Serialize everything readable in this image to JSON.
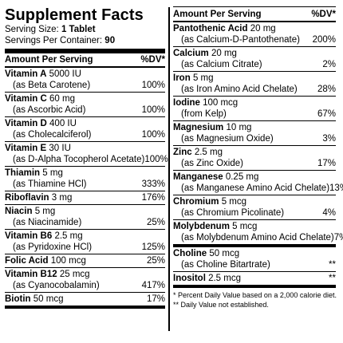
{
  "panel": {
    "title": "Supplement Facts",
    "serving_size_label": "Serving Size:",
    "serving_size_value": "1 Tablet",
    "servings_label": "Servings Per Container:",
    "servings_value": "90",
    "header_amount": "Amount Per Serving",
    "header_dv": "%DV*"
  },
  "left_items": [
    {
      "name": "Vitamin A",
      "amount": "5000 IU",
      "source": "(as Beta Carotene)",
      "dv": "100%"
    },
    {
      "name": "Vitamin C",
      "amount": "60 mg",
      "source": "(as Ascorbic Acid)",
      "dv": "100%"
    },
    {
      "name": "Vitamin D",
      "amount": "400 IU",
      "source": "(as Cholecalciferol)",
      "dv": "100%"
    },
    {
      "name": "Vitamin E",
      "amount": "30 IU",
      "source": "(as D-Alpha Tocopherol Acetate)",
      "dv": "100%"
    },
    {
      "name": "Thiamin",
      "amount": "5 mg",
      "source": "(as Thiamine HCl)",
      "dv": "333%"
    },
    {
      "name": "Riboflavin",
      "amount": "3 mg",
      "source": "",
      "dv": "176%"
    },
    {
      "name": "Niacin",
      "amount": "5 mg",
      "source": "(as Niacinamide)",
      "dv": "25%"
    },
    {
      "name": "Vitamin B6",
      "amount": "2.5 mg",
      "source": "(as Pyridoxine HCl)",
      "dv": "125%"
    },
    {
      "name": "Folic Acid",
      "amount": "100 mcg",
      "source": "",
      "dv": "25%"
    },
    {
      "name": "Vitamin B12",
      "amount": "25 mcg",
      "source": "(as Cyanocobalamin)",
      "dv": "417%"
    },
    {
      "name": "Biotin",
      "amount": "50 mcg",
      "source": "",
      "dv": "17%"
    }
  ],
  "right_items": [
    {
      "name": "Pantothenic Acid",
      "amount": "20 mg",
      "source": "(as Calcium-D-Pantothenate)",
      "dv": "200%"
    },
    {
      "name": "Calcium",
      "amount": "20 mg",
      "source": "(as Calcium Citrate)",
      "dv": "2%"
    },
    {
      "name": "Iron",
      "amount": "5 mg",
      "source": "(as Iron Amino Acid Chelate)",
      "dv": "28%"
    },
    {
      "name": "Iodine",
      "amount": "100 mcg",
      "source": "(from Kelp)",
      "dv": "67%"
    },
    {
      "name": "Magnesium",
      "amount": "10 mg",
      "source": "(as Magnesium Oxide)",
      "dv": "3%"
    },
    {
      "name": "Zinc",
      "amount": "2.5 mg",
      "source": "(as Zinc Oxide)",
      "dv": "17%"
    },
    {
      "name": "Manganese",
      "amount": "0.25 mg",
      "source": "(as Manganese Amino Acid Chelate)",
      "dv": "13%"
    },
    {
      "name": "Chromium",
      "amount": "5 mcg",
      "source": "(as Chromium Picolinate)",
      "dv": "4%"
    },
    {
      "name": "Molybdenum",
      "amount": "5 mcg",
      "source": "(as Molybdenum Amino Acid Chelate)",
      "dv": "7%"
    }
  ],
  "right_extra": [
    {
      "name": "Choline",
      "amount": "50 mcg",
      "source": "(as Choline Bitartrate)",
      "dv": "**"
    },
    {
      "name": "Inositol",
      "amount": "2.5 mcg",
      "source": "",
      "dv": "**"
    }
  ],
  "footnotes": {
    "note1": "* Percent Daily Value based on a 2,000 calorie diet.",
    "note2": "** Daily Value not established."
  }
}
